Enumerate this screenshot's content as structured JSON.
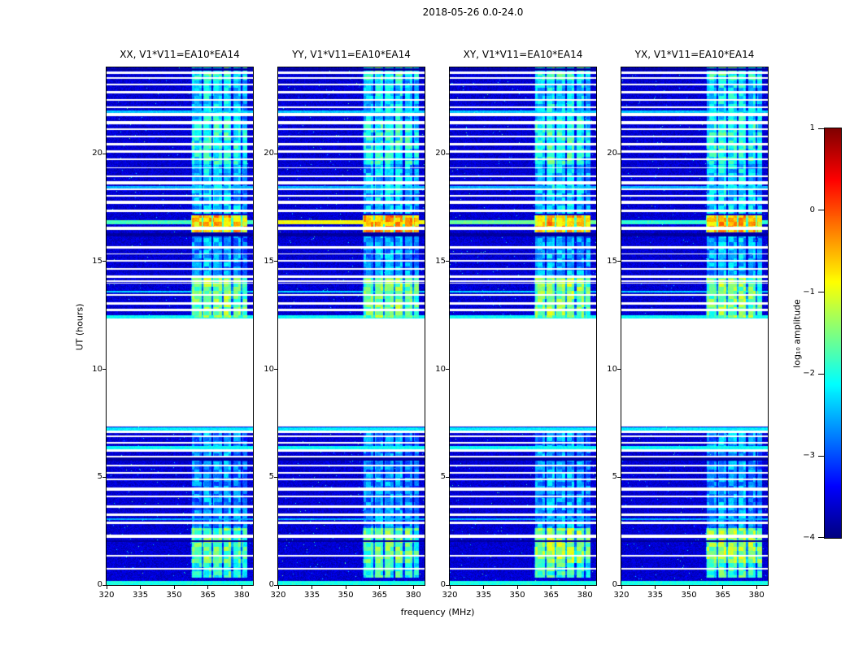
{
  "chart_data": {
    "type": "heatmap",
    "title": "2018-05-26 0.0-24.0",
    "xlabel": "frequency (MHz)",
    "ylabel": "UT (hours)",
    "x_range": [
      320,
      385
    ],
    "x_ticks": [
      320,
      335,
      350,
      365,
      380
    ],
    "y_range": [
      0,
      24
    ],
    "y_ticks": [
      0,
      5,
      10,
      15,
      20
    ],
    "panels": [
      {
        "id": "XX",
        "title": "XX, V1*V11=EA10*EA14"
      },
      {
        "id": "YY",
        "title": "YY, V1*V11=EA10*EA14"
      },
      {
        "id": "XY",
        "title": "XY, V1*V11=EA10*EA14"
      },
      {
        "id": "YX",
        "title": "YX, V1*V11=EA10*EA14"
      }
    ],
    "colorbar": {
      "label": "log₁₀ amplitude",
      "range": [
        -4,
        1
      ],
      "tick_values": [
        1,
        0,
        -1,
        -2,
        -3,
        -4
      ],
      "tick_labels": [
        "1",
        "0",
        "−1",
        "−2",
        "−3",
        "−4"
      ]
    },
    "heatmap_model": {
      "background_level": -3.6,
      "noise_amplitude": 0.5,
      "speckle_probability": 0.004,
      "data_gap_hours": [
        7.35,
        12.35
      ],
      "band_mhz": [
        357.5,
        382.5
      ],
      "subbands_mhz": [
        [
          357.8,
          362.3
        ],
        [
          363.1,
          366.6
        ],
        [
          367.4,
          371.1
        ],
        [
          371.9,
          375.4
        ],
        [
          376.2,
          379.6
        ],
        [
          380.3,
          382.4
        ]
      ],
      "subband_weights": [
        0.88,
        1.0,
        0.96,
        1.0,
        0.92,
        0.8
      ],
      "events": [
        {
          "hours": [
            0.35,
            1.0
          ],
          "levels": [
            -1.9,
            -1.9,
            -1.8,
            -1.8
          ]
        },
        {
          "hours": [
            1.0,
            2.65
          ],
          "levels": [
            -1.55,
            -1.55,
            -1.3,
            -1.3
          ]
        },
        {
          "hours": [
            2.65,
            7.3
          ],
          "levels": [
            -2.6,
            -2.6,
            -2.55,
            -2.55
          ]
        },
        {
          "hours": [
            12.4,
            14.3
          ],
          "levels": [
            -1.45,
            -1.5,
            -1.4,
            -1.45
          ]
        },
        {
          "hours": [
            14.3,
            16.3
          ],
          "levels": [
            -2.5,
            -2.5,
            -2.45,
            -2.45
          ]
        },
        {
          "hours": [
            16.35,
            17.15
          ],
          "levels": [
            -0.5,
            -0.35,
            -0.45,
            -0.5
          ]
        },
        {
          "hours": [
            17.2,
            19.5
          ],
          "levels": [
            -2.35,
            -2.35,
            -2.3,
            -2.3
          ]
        },
        {
          "hours": [
            19.5,
            21.6
          ],
          "levels": [
            -1.95,
            -1.95,
            -1.9,
            -1.9
          ]
        },
        {
          "hours": [
            21.6,
            23.4
          ],
          "levels": [
            -2.25,
            -2.25,
            -2.2,
            -2.2
          ]
        },
        {
          "hours": [
            23.4,
            24.0
          ],
          "levels": [
            -1.85,
            -1.85,
            -1.8,
            -1.8
          ]
        }
      ],
      "full_band_lines": [
        {
          "hours": [
            0.0,
            0.18
          ],
          "levels": [
            -2.0,
            -2.0,
            -2.0,
            -2.0
          ]
        },
        {
          "hours": [
            3.0,
            3.1
          ],
          "levels": [
            -2.5,
            -2.5,
            -2.5,
            -2.5
          ]
        },
        {
          "hours": [
            6.3,
            6.45
          ],
          "levels": [
            -2.1,
            -2.1,
            -2.1,
            -2.1
          ]
        },
        {
          "hours": [
            7.12,
            7.3
          ],
          "levels": [
            -2.2,
            -2.2,
            -2.2,
            -2.2
          ]
        },
        {
          "hours": [
            12.37,
            12.5
          ],
          "levels": [
            -2.1,
            -2.1,
            -2.1,
            -2.1
          ]
        },
        {
          "hours": [
            13.55,
            13.65
          ],
          "levels": [
            -2.3,
            -2.3,
            -2.3,
            -2.3
          ]
        },
        {
          "hours": [
            16.72,
            16.92
          ],
          "levels": [
            -1.8,
            -0.9,
            -1.6,
            -1.9
          ]
        },
        {
          "hours": [
            18.4,
            18.5
          ],
          "levels": [
            -2.5,
            -2.5,
            -2.5,
            -2.5
          ]
        },
        {
          "hours": [
            21.9,
            22.0
          ],
          "levels": [
            -2.4,
            -2.4,
            -2.4,
            -2.4
          ]
        }
      ],
      "dark_lines": [
        {
          "hours": [
            2.0,
            2.08
          ]
        },
        {
          "hours": [
            5.75,
            5.9
          ]
        },
        {
          "hours": [
            15.0,
            15.08
          ]
        },
        {
          "hours": [
            16.15,
            16.33
          ]
        },
        {
          "hours": [
            23.85,
            23.95
          ]
        }
      ],
      "dark_level": -3.95,
      "dropout_hours": [
        0.75,
        1.35,
        2.25,
        2.9,
        3.25,
        3.65,
        4.1,
        4.45,
        4.9,
        5.2,
        5.55,
        5.95,
        6.25,
        6.6,
        6.9,
        7.1,
        12.75,
        13.05,
        13.45,
        14.0,
        14.1,
        14.3,
        14.65,
        15.05,
        15.35,
        15.65,
        16.55,
        17.35,
        17.75,
        18.05,
        18.35,
        18.65,
        18.95,
        19.35,
        19.75,
        20.1,
        20.45,
        20.8,
        21.15,
        21.45,
        21.8,
        22.15,
        22.5,
        22.85,
        23.2,
        23.5,
        23.75
      ],
      "noise_seed": 20180526
    }
  }
}
